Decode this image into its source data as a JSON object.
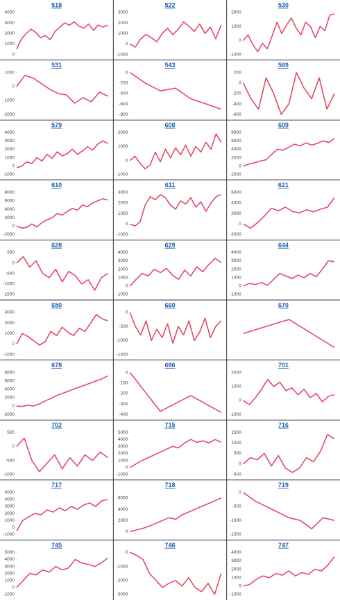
{
  "chart_data": [
    {
      "type": "line",
      "title": "518",
      "color": "#e34a64",
      "ylim": [
        0,
        4000
      ],
      "yticks": [
        0,
        1000,
        2000,
        3000,
        4000
      ],
      "values": [
        500,
        1500,
        2000,
        2400,
        2100,
        1600,
        1800,
        1400,
        2200,
        2600,
        3000,
        2800,
        3100,
        2700,
        2500,
        2900,
        2300,
        2800,
        2600,
        2800
      ]
    },
    {
      "type": "line",
      "title": "522",
      "color": "#e34a64",
      "ylim": [
        -1000,
        3000
      ],
      "yticks": [
        -1000,
        0,
        1000,
        2000,
        3000
      ],
      "values": [
        0,
        -300,
        500,
        900,
        600,
        200,
        1000,
        1500,
        900,
        1400,
        2100,
        1700,
        1200,
        1900,
        1000,
        1600,
        500,
        1800
      ]
    },
    {
      "type": "line",
      "title": "530",
      "color": "#e34a64",
      "ylim": [
        -1000,
        2000
      ],
      "yticks": [
        -1000,
        0,
        1000,
        2000
      ],
      "values": [
        0,
        400,
        -300,
        -800,
        -200,
        -600,
        300,
        1300,
        500,
        1100,
        1600,
        900,
        400,
        1300,
        1000,
        200,
        1000,
        700,
        1800,
        1900
      ]
    },
    {
      "type": "line",
      "title": "531",
      "color": "#e34a64",
      "ylim": [
        -2000,
        1000
      ],
      "yticks": [
        -2000,
        -1000,
        0,
        1000
      ],
      "values": [
        0,
        800,
        600,
        200,
        -200,
        -500,
        -600,
        -1200,
        -800,
        -1100,
        -400,
        -700
      ]
    },
    {
      "type": "line",
      "title": "543",
      "color": "#e34a64",
      "ylim": [
        -800,
        0
      ],
      "yticks": [
        -800,
        -600,
        -400,
        -200,
        0
      ],
      "values": [
        0,
        -200,
        -350,
        -300,
        -500,
        -600,
        -700
      ]
    },
    {
      "type": "line",
      "title": "569",
      "color": "#e34a64",
      "ylim": [
        -600,
        200
      ],
      "yticks": [
        -600,
        -400,
        -200,
        0,
        200
      ],
      "values": [
        0,
        -300,
        -500,
        100,
        -200,
        -600,
        -400,
        200,
        -100,
        -300,
        100,
        -500,
        -200
      ]
    },
    {
      "type": "line",
      "title": "579",
      "color": "#e34a64",
      "ylim": [
        -1000,
        4000
      ],
      "yticks": [
        -1000,
        0,
        1000,
        2000,
        3000,
        4000
      ],
      "values": [
        -200,
        0,
        500,
        300,
        1000,
        600,
        1400,
        900,
        1700,
        1200,
        1500,
        2000,
        1400,
        1800,
        2300,
        1900,
        2600,
        3000,
        2700
      ]
    },
    {
      "type": "line",
      "title": "608",
      "color": "#e34a64",
      "ylim": [
        -1000,
        2000
      ],
      "yticks": [
        -1000,
        0,
        1000,
        2000
      ],
      "values": [
        0,
        300,
        -200,
        -600,
        -300,
        600,
        -100,
        800,
        200,
        900,
        400,
        1100,
        300,
        1000,
        600,
        1300,
        800,
        1900,
        1300
      ]
    },
    {
      "type": "line",
      "title": "609",
      "color": "#e34a64",
      "ylim": [
        -2000,
        8000
      ],
      "yticks": [
        -2000,
        0,
        2000,
        4000,
        6000,
        8000
      ],
      "values": [
        0,
        500,
        800,
        1200,
        1500,
        2800,
        4000,
        3800,
        4500,
        5200,
        4800,
        5500,
        5000,
        5400,
        6000,
        5600,
        6600
      ]
    },
    {
      "type": "line",
      "title": "610",
      "color": "#e34a64",
      "ylim": [
        -2000,
        8000
      ],
      "yticks": [
        -2000,
        0,
        2000,
        4000,
        6000,
        8000
      ],
      "values": [
        0,
        -500,
        -300,
        500,
        -200,
        800,
        1500,
        2000,
        3000,
        2600,
        3500,
        4200,
        3800,
        5000,
        4600,
        5500,
        6000,
        6500,
        6200
      ]
    },
    {
      "type": "line",
      "title": "611",
      "color": "#e34a64",
      "ylim": [
        -1000,
        3000
      ],
      "yticks": [
        -1000,
        0,
        1000,
        2000,
        3000
      ],
      "values": [
        0,
        -200,
        200,
        1800,
        2600,
        2300,
        2800,
        2500,
        1800,
        1400,
        2200,
        1900,
        2500,
        1600,
        2100,
        1200,
        2000,
        2600,
        2800
      ]
    },
    {
      "type": "line",
      "title": "621",
      "color": "#e34a64",
      "ylim": [
        -2000,
        6000
      ],
      "yticks": [
        -2000,
        0,
        2000,
        4000,
        6000
      ],
      "values": [
        0,
        -800,
        200,
        1500,
        3000,
        2500,
        3200,
        2400,
        2100,
        2700,
        2300,
        2800,
        3200,
        5000
      ]
    },
    {
      "type": "line",
      "title": "628",
      "color": "#e34a64",
      "ylim": [
        -1500,
        500
      ],
      "yticks": [
        -1500,
        -1000,
        -500,
        0,
        500
      ],
      "values": [
        0,
        300,
        -200,
        100,
        -500,
        -700,
        -300,
        -900,
        -400,
        -600,
        -1000,
        -800,
        -1300,
        -700,
        -500
      ]
    },
    {
      "type": "line",
      "title": "629",
      "color": "#e34a64",
      "ylim": [
        -1000,
        4000
      ],
      "yticks": [
        -1000,
        0,
        1000,
        2000,
        3000,
        4000
      ],
      "values": [
        0,
        800,
        1500,
        1200,
        2000,
        1600,
        2100,
        1300,
        800,
        1900,
        1200,
        2300,
        1700,
        2600,
        3300,
        2800
      ]
    },
    {
      "type": "line",
      "title": "644",
      "color": "#e34a64",
      "ylim": [
        -1000,
        4000
      ],
      "yticks": [
        -1000,
        0,
        1000,
        2000,
        3000,
        4000
      ],
      "values": [
        0,
        300,
        200,
        400,
        100,
        800,
        1500,
        1200,
        900,
        1300,
        1000,
        1500,
        1100,
        2000,
        3000,
        2900
      ]
    },
    {
      "type": "line",
      "title": "650",
      "color": "#e34a64",
      "ylim": [
        -1000,
        3000
      ],
      "yticks": [
        -1000,
        0,
        1000,
        2000,
        3000
      ],
      "values": [
        0,
        1000,
        700,
        300,
        -100,
        200,
        1200,
        800,
        1600,
        1100,
        800,
        1500,
        1200,
        2000,
        2800,
        2400,
        2200
      ]
    },
    {
      "type": "line",
      "title": "660",
      "color": "#e34a64",
      "ylim": [
        -1500,
        0
      ],
      "yticks": [
        -1500,
        -1000,
        -500,
        0
      ],
      "values": [
        0,
        -500,
        -800,
        -300,
        -1000,
        -600,
        -900,
        -400,
        -1100,
        -500,
        -800,
        -300,
        -1000,
        -700,
        -200,
        -900,
        -500,
        -300
      ]
    },
    {
      "type": "line",
      "title": "670",
      "color": "#e34a64",
      "ylim": [
        -150,
        150
      ],
      "values": [
        0,
        100,
        -100
      ]
    },
    {
      "type": "line",
      "title": "678",
      "color": "#e34a64",
      "ylim": [
        -2000,
        8000
      ],
      "yticks": [
        -2000,
        0,
        2000,
        4000,
        6000,
        8000
      ],
      "values": [
        0,
        -100,
        200,
        0,
        500,
        1200,
        1800,
        2500,
        3000,
        3500,
        4000,
        4500,
        5000,
        5500,
        6000,
        6500,
        7200
      ]
    },
    {
      "type": "line",
      "title": "686",
      "color": "#e34a64",
      "ylim": [
        -400,
        0
      ],
      "yticks": [
        -400,
        -300,
        -200,
        -100,
        0
      ],
      "values": [
        0,
        -370,
        -220,
        -380
      ]
    },
    {
      "type": "line",
      "title": "701",
      "color": "#e34a64",
      "ylim": [
        -1000,
        2000
      ],
      "yticks": [
        -1000,
        0,
        1000,
        2000
      ],
      "values": [
        0,
        -300,
        200,
        800,
        1500,
        1000,
        1300,
        700,
        900,
        400,
        800,
        200,
        500,
        -100,
        300,
        400
      ]
    },
    {
      "type": "line",
      "title": "702",
      "color": "#e34a64",
      "ylim": [
        -1000,
        500
      ],
      "yticks": [
        -1000,
        -500,
        0,
        500
      ],
      "values": [
        0,
        300,
        -500,
        -900,
        -600,
        -300,
        -800,
        -400,
        -700,
        -300,
        -500,
        -200,
        -400
      ]
    },
    {
      "type": "line",
      "title": "715",
      "color": "#e34a64",
      "ylim": [
        -1000,
        5000
      ],
      "yticks": [
        -1000,
        0,
        1000,
        2000,
        3000,
        4000,
        5000
      ],
      "values": [
        0,
        500,
        1000,
        1400,
        1800,
        2200,
        2600,
        3000,
        2800,
        3500,
        4000,
        3600,
        3800,
        3500,
        4000,
        3600
      ]
    },
    {
      "type": "line",
      "title": "716",
      "color": "#e34a64",
      "ylim": [
        -500,
        1500
      ],
      "yticks": [
        -500,
        0,
        500,
        1000,
        1500
      ],
      "values": [
        0,
        300,
        200,
        500,
        -100,
        400,
        -200,
        -400,
        -200,
        300,
        100,
        600,
        1400,
        1200
      ]
    },
    {
      "type": "line",
      "title": "717",
      "color": "#e34a64",
      "ylim": [
        -1000,
        5000
      ],
      "yticks": [
        -1000,
        0,
        1000,
        2000,
        3000,
        4000,
        5000
      ],
      "values": [
        -500,
        1000,
        1500,
        2000,
        1800,
        2500,
        2200,
        2800,
        2400,
        3000,
        2600,
        3200,
        3500,
        3000,
        3800,
        4000
      ]
    },
    {
      "type": "line",
      "title": "718",
      "color": "#e34a64",
      "ylim": [
        -500,
        7000
      ],
      "yticks": [
        0,
        2000,
        4000,
        6000
      ],
      "values": [
        0,
        300,
        600,
        1000,
        1500,
        2000,
        2500,
        2200,
        3000,
        3500,
        4000,
        4500,
        5000,
        5500,
        6000
      ]
    },
    {
      "type": "line",
      "title": "719",
      "color": "#e34a64",
      "ylim": [
        -1500,
        0
      ],
      "yticks": [
        -1500,
        -1000,
        -500,
        0
      ],
      "values": [
        0,
        -300,
        -500,
        -700,
        -900,
        -1000,
        -1300,
        -900,
        -1000
      ]
    },
    {
      "type": "line",
      "title": "745",
      "color": "#e34a64",
      "ylim": [
        -1000,
        5000
      ],
      "yticks": [
        -1000,
        0,
        1000,
        2000,
        3000,
        4000,
        5000
      ],
      "values": [
        0,
        1000,
        2000,
        1800,
        2500,
        2200,
        3000,
        2500,
        2800,
        4000,
        3500,
        3300,
        3000,
        3500,
        4200
      ]
    },
    {
      "type": "line",
      "title": "746",
      "color": "#e34a64",
      "ylim": [
        -3000,
        0
      ],
      "yticks": [
        -3000,
        -2000,
        -1000,
        0
      ],
      "values": [
        0,
        -200,
        -500,
        -1500,
        -2000,
        -2500,
        -2200,
        -2000,
        -2400,
        -1800,
        -2500,
        -2800,
        -2200,
        -3000,
        -1500
      ]
    },
    {
      "type": "line",
      "title": "747",
      "color": "#e34a64",
      "ylim": [
        -1000,
        4000
      ],
      "yticks": [
        -1000,
        0,
        1000,
        2000,
        3000,
        4000
      ],
      "values": [
        0,
        200,
        800,
        1200,
        1000,
        1500,
        1300,
        1800,
        1200,
        1600,
        1400,
        2000,
        1800,
        2500,
        3500
      ]
    }
  ]
}
